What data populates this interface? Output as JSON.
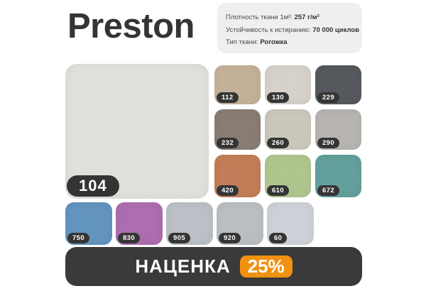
{
  "title": "Preston",
  "specs": {
    "items": [
      {
        "label": "Плотность ткани 1м²:",
        "value": "257 г/м²"
      },
      {
        "label": "Устойчивость к истиранию:",
        "value": "70 000 циклов"
      },
      {
        "label": "Тип ткани:",
        "value": "Рогожка"
      }
    ]
  },
  "featured": {
    "code": "104",
    "color": "#e5e4e0"
  },
  "swatches": {
    "grid": [
      {
        "code": "112",
        "color": "#c3aa8e"
      },
      {
        "code": "130",
        "color": "#d8d3ca"
      },
      {
        "code": "229",
        "color": "#3a3e44"
      },
      {
        "code": "232",
        "color": "#7a6a60"
      },
      {
        "code": "260",
        "color": "#ccc6b9"
      },
      {
        "code": "290",
        "color": "#b2afac"
      },
      {
        "code": "420",
        "color": "#c16a3d"
      },
      {
        "code": "610",
        "color": "#a9c480"
      },
      {
        "code": "672",
        "color": "#4a9693"
      }
    ],
    "bottom_row": [
      {
        "code": "750",
        "color": "#4a87bd"
      },
      {
        "code": "830",
        "color": "#a558a8"
      },
      {
        "code": "905",
        "color": "#b7bec6"
      },
      {
        "code": "920",
        "color": "#b6bbbf"
      },
      {
        "code": "60",
        "color": "#cdd3db"
      }
    ]
  },
  "markup": {
    "label": "НАЦЕНКА",
    "value": "25%"
  },
  "colors": {
    "accent_orange": "#f09110",
    "badge_dark": "#343434",
    "bar_dark": "#3a3a3a",
    "specs_bg": "#f1efee",
    "title_text": "#343434"
  }
}
